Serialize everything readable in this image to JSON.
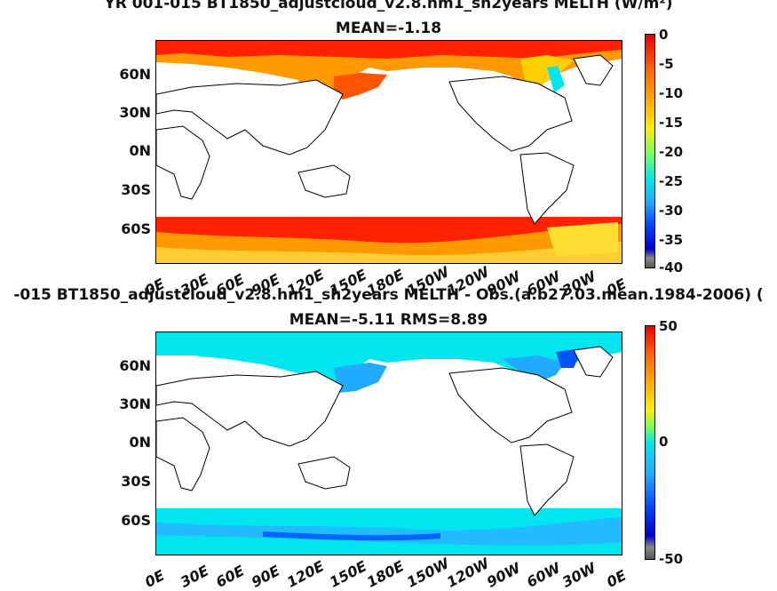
{
  "panel1": {
    "title": "YR 001-015 BT1850_adjustcloud_v2.8.hm1_sh2years  MELTH (W/m²)",
    "subtitle": "MEAN=-1.18",
    "colorbar_labels": [
      "0",
      "-5",
      "-10",
      "-15",
      "-20",
      "-25",
      "-30",
      "-35",
      "-40"
    ]
  },
  "panel2": {
    "title": "-015 BT1850_adjustcloud_v2.8.hm1_sh2years MELTH - Obs.(a.b27.03.mean.1984-2006) (",
    "subtitle": "MEAN=-5.11 RMS=8.89",
    "colorbar_labels": [
      "50",
      "0",
      "-50"
    ]
  },
  "lat_labels": [
    "60N",
    "30N",
    "0N",
    "30S",
    "60S"
  ],
  "lon_labels": [
    "0E",
    "30E",
    "60E",
    "90E",
    "120E",
    "150E",
    "180E",
    "150W",
    "120W",
    "90W",
    "60W",
    "30W",
    "0E"
  ],
  "colors": {
    "red": "#ff2200",
    "orange": "#ff9900",
    "yellow": "#ffee00",
    "cyan": "#00e5ee",
    "lightblue": "#22bbff",
    "blue": "#0055ff"
  }
}
